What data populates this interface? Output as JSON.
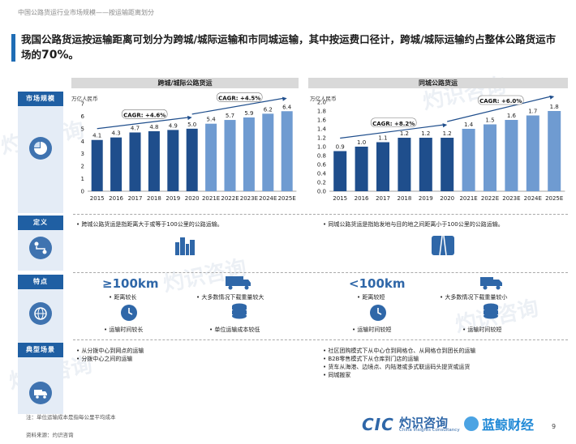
{
  "breadcrumb": "中国公路货运行业市场规模——按运输距离划分",
  "title": {
    "main": "我国公路货运按运输距离可划分为跨城/城际运输和市同城运输，其中按运费口径计，跨城/城际运输约占整体公路货运市场的",
    "pct": "70%",
    "end": "。"
  },
  "sidebar": {
    "market": "市场规模",
    "definition": "定义",
    "features": "特点",
    "scenarios": "典型场景"
  },
  "chart_data": [
    {
      "type": "bar",
      "title": "跨城/城际公路货运",
      "ylabel": "万亿人民币",
      "ylim": [
        0,
        7
      ],
      "yticks": [
        0,
        1,
        2,
        3,
        4,
        5,
        6,
        7
      ],
      "categories": [
        "2015",
        "2016",
        "2017",
        "2018",
        "2019",
        "2020",
        "2021E",
        "2022E",
        "2023E",
        "2024E",
        "2025E"
      ],
      "values": [
        4.1,
        4.3,
        4.7,
        4.8,
        4.9,
        5.0,
        5.4,
        5.7,
        5.9,
        6.2,
        6.4
      ],
      "value_labels": [
        "4.1",
        "4.3",
        "4.7",
        "4.8",
        "4.9",
        "5.0",
        "5.4",
        "5.7",
        "5.9",
        "6.2",
        "6.4"
      ],
      "annotations": [
        "CAGR: +4.6%",
        "CAGR: +4.5%"
      ],
      "colors": {
        "actual": "#1f4e8c",
        "forecast": "#6f9bd1"
      }
    },
    {
      "type": "bar",
      "title": "同城公路货运",
      "ylabel": "万亿人民币",
      "ylim": [
        0,
        2
      ],
      "yticks": [
        0.0,
        0.2,
        0.4,
        0.6,
        0.8,
        1.0,
        1.2,
        1.4,
        1.6,
        1.8,
        2.0
      ],
      "categories": [
        "2015",
        "2016",
        "2017",
        "2018",
        "2019",
        "2020",
        "2021E",
        "2022E",
        "2023E",
        "2024E",
        "2025E"
      ],
      "values": [
        0.9,
        1.0,
        1.1,
        1.2,
        1.2,
        1.2,
        1.4,
        1.5,
        1.6,
        1.7,
        1.8
      ],
      "value_labels": [
        "0.9",
        "1.0",
        "1.1",
        "1.2",
        "1.2",
        "1.2",
        "1.4",
        "1.5",
        "1.6",
        "1.7",
        "1.8"
      ],
      "annotations": [
        "CAGR: +8.2%",
        "CAGR: +6.0%"
      ],
      "colors": {
        "actual": "#1f4e8c",
        "forecast": "#6f9bd1"
      }
    }
  ],
  "definitions": {
    "left": "跨城公路货运是指距离大于或等于100公里的公路运输。",
    "right": "同城公路货运是指始发地与目的地之间距离小于100公里的公路运输。"
  },
  "features": {
    "left": {
      "km": "≥100km",
      "f1": "距离较长",
      "f2": "大多数情况下载重量较大",
      "f3": "运输时间较长",
      "f4": "单位运输成本较低"
    },
    "right": {
      "km": "<100km",
      "f1": "距离较短",
      "f2": "大多数情况下载重量较小",
      "f3": "运输时间较短",
      "f4": "运输时间较短"
    }
  },
  "scenarios": {
    "left": [
      "从分拨中心到网点的运输",
      "分拨中心之间的运输"
    ],
    "right": [
      "社区团购模式下从中心仓到网格仓、从网格仓到团长的运输",
      "B2B零售模式下从仓库到门店的运输",
      "货车从海港、边境点、内陆港或多式联运码头提货或运货",
      "同城搬家"
    ]
  },
  "footer": {
    "note": "注：单位运输成本是指每公里平均成本",
    "source": "资料来源：灼识咨询",
    "page": "9"
  },
  "logos": {
    "cic": "CIC",
    "cic_zh": "灼识咨询",
    "cic_en": "China Insights Consultancy",
    "lj": "蓝鲸财经"
  },
  "watermark": "灼识咨询"
}
